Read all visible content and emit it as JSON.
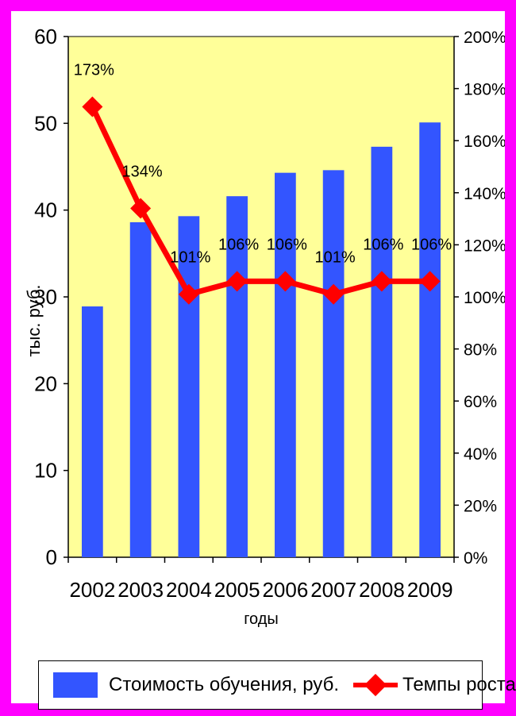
{
  "colors": {
    "page_border": "#ff00ff",
    "plot_background": "#ffff99",
    "bar": "#3355ff",
    "line": "#ff0000"
  },
  "chart_data": {
    "type": "bar",
    "categories": [
      "2002",
      "2003",
      "2004",
      "2005",
      "2006",
      "2007",
      "2008",
      "2009"
    ],
    "series": [
      {
        "name": "Стоимость обучения, руб.",
        "type": "bar",
        "axis": "left",
        "values": [
          28.9,
          38.6,
          39.3,
          41.6,
          44.3,
          44.6,
          47.3,
          50.1
        ]
      },
      {
        "name": "Темпы роста",
        "type": "line",
        "axis": "right",
        "marker": "diamond",
        "values": [
          173,
          134,
          101,
          106,
          106,
          101,
          106,
          106
        ],
        "data_labels": [
          "173%",
          "134%",
          "101%",
          "106%",
          "106%",
          "101%",
          "106%",
          "106%"
        ]
      }
    ],
    "xlabel": "годы",
    "ylabel": "тыс.    руб.",
    "ylim": [
      0,
      60
    ],
    "yticks": [
      "0",
      "10",
      "20",
      "30",
      "40",
      "50",
      "60"
    ],
    "y2lim": [
      0,
      200
    ],
    "y2ticks": [
      "0%",
      "20%",
      "40%",
      "60%",
      "80%",
      "100%",
      "120%",
      "140%",
      "160%",
      "180%",
      "200%"
    ],
    "grid": false,
    "legend": "bottom"
  }
}
